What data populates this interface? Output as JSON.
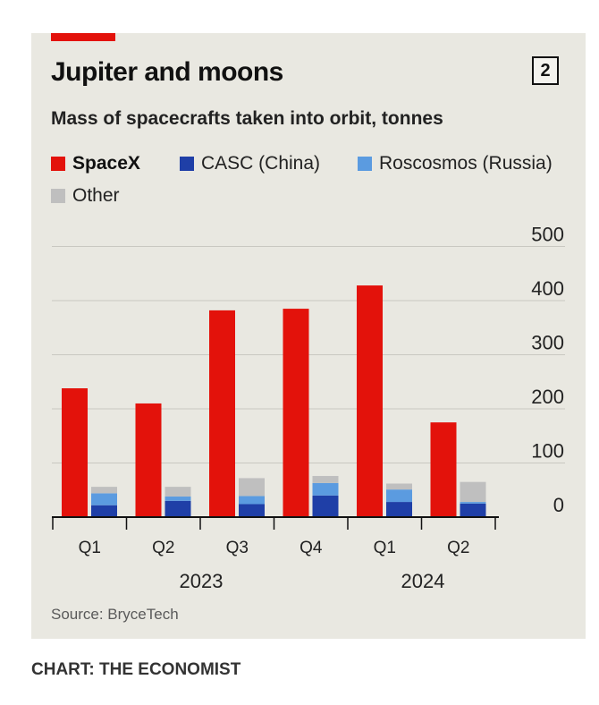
{
  "header": {
    "title": "Jupiter and moons",
    "badge": "2",
    "subtitle": "Mass of spacecrafts taken into orbit, tonnes"
  },
  "legend": [
    {
      "label": "SpaceX",
      "color": "#e3120b"
    },
    {
      "label": "CASC (China)",
      "color": "#1f3fa7"
    },
    {
      "label": "Roscosmos (Russia)",
      "color": "#5b9be0"
    },
    {
      "label": "Other",
      "color": "#bfbfbf"
    }
  ],
  "chart_data": {
    "type": "bar",
    "stacked_secondary": true,
    "categories": [
      "Q1",
      "Q2",
      "Q3",
      "Q4",
      "Q1",
      "Q2"
    ],
    "groups": [
      {
        "label": "2023",
        "categories": [
          "Q1",
          "Q2",
          "Q3",
          "Q4"
        ]
      },
      {
        "label": "2024",
        "categories": [
          "Q1",
          "Q2"
        ]
      }
    ],
    "series": [
      {
        "name": "SpaceX",
        "color": "#e3120b",
        "values": [
          238,
          210,
          382,
          385,
          428,
          175
        ]
      },
      {
        "name": "CASC (China)",
        "color": "#1f3fa7",
        "values": [
          22,
          30,
          24,
          40,
          28,
          25
        ]
      },
      {
        "name": "Roscosmos (Russia)",
        "color": "#5b9be0",
        "values": [
          22,
          8,
          15,
          23,
          23,
          3
        ]
      },
      {
        "name": "Other",
        "color": "#bfbfbf",
        "values": [
          12,
          18,
          33,
          13,
          11,
          37
        ]
      }
    ],
    "yticks": [
      0,
      100,
      200,
      300,
      400,
      500
    ],
    "ylim": [
      0,
      500
    ],
    "grid": true,
    "y_axis_side": "right",
    "legend_position": "top"
  },
  "footer": {
    "source": "Source: BryceTech",
    "credit": "CHART: THE ECONOMIST"
  }
}
